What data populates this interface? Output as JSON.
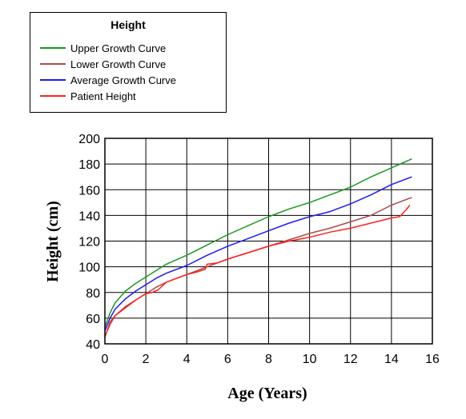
{
  "chart_data": {
    "type": "line",
    "title": "",
    "xlabel": "Age (Years)",
    "ylabel": "Height (cm)",
    "xlim": [
      0,
      16
    ],
    "ylim": [
      40,
      200
    ],
    "xticks": [
      0,
      2,
      4,
      6,
      8,
      10,
      12,
      14,
      16
    ],
    "yticks": [
      40,
      60,
      80,
      100,
      120,
      140,
      160,
      180,
      200
    ],
    "grid": true,
    "legend": {
      "title": "Height",
      "placement": "top-left"
    },
    "series": [
      {
        "name": "Upper Growth Curve",
        "color": "#1a9a1a",
        "x": [
          0,
          0.25,
          0.5,
          1,
          1.5,
          2,
          2.5,
          3,
          4,
          5,
          6,
          7,
          8,
          9,
          10,
          11,
          12,
          13,
          14,
          15
        ],
        "y": [
          53,
          64,
          72,
          81,
          87,
          92,
          97,
          102,
          109,
          117,
          125,
          132,
          139,
          145,
          150,
          156,
          162,
          170,
          177,
          184
        ]
      },
      {
        "name": "Lower Growth Curve",
        "color": "#b04a4a",
        "x": [
          0,
          0.25,
          0.5,
          1,
          1.5,
          2,
          2.5,
          3,
          4,
          5,
          6,
          7,
          8,
          9,
          10,
          11,
          12,
          13,
          14,
          15
        ],
        "y": [
          46,
          55,
          62,
          69,
          74,
          79,
          84,
          88,
          94,
          100,
          106,
          111,
          116,
          121,
          126,
          130,
          135,
          140,
          148,
          154
        ]
      },
      {
        "name": "Average Growth Curve",
        "color": "#1a1aff",
        "x": [
          0,
          0.25,
          0.5,
          1,
          1.5,
          2,
          2.5,
          3,
          4,
          5,
          6,
          7,
          8,
          9,
          10,
          11,
          12,
          13,
          14,
          15
        ],
        "y": [
          50,
          60,
          67,
          75,
          81,
          86,
          91,
          95,
          101,
          109,
          116,
          122,
          128,
          134,
          139,
          143,
          149,
          156,
          164,
          170
        ]
      },
      {
        "name": "Patient Height",
        "color": "#ff2020",
        "x": [
          0,
          0.25,
          0.5,
          1,
          1.5,
          2,
          2.3,
          2.6,
          3,
          3.5,
          4,
          4.5,
          4.9,
          5.0,
          5.5,
          6,
          7,
          8,
          9,
          10,
          11,
          12,
          13,
          14,
          14.4,
          14.7,
          14.9
        ],
        "y": [
          45,
          57,
          62,
          68,
          74,
          79,
          80,
          82,
          88,
          91,
          94,
          96,
          98,
          102,
          103,
          106,
          111,
          116,
          120,
          123,
          127,
          130,
          134,
          138,
          139,
          144,
          148
        ]
      }
    ]
  }
}
